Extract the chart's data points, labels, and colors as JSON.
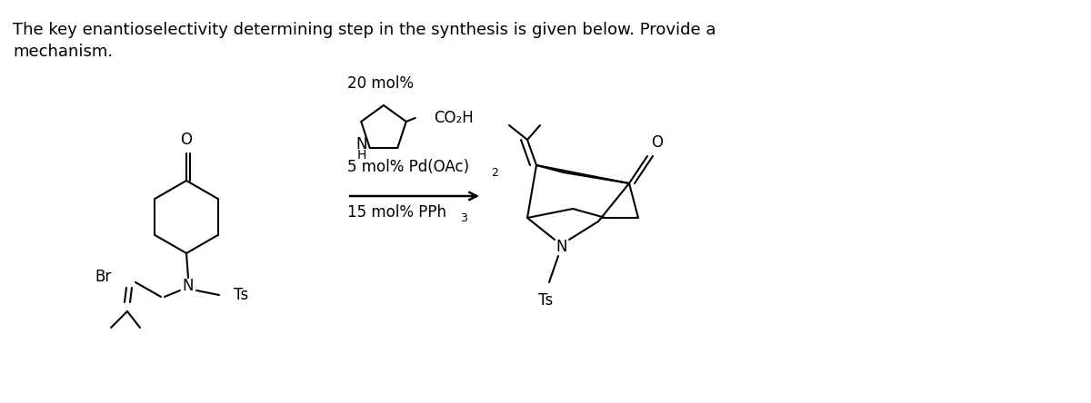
{
  "bg_color": "#ffffff",
  "text_color": "#000000",
  "line_color": "#000000",
  "line_width": 1.5,
  "title_line1": "The key enantioselectivity determining step in the synthesis is given below. Provide a",
  "title_line2": "mechanism.",
  "catalyst_20mol": "20 mol%",
  "catalyst_pd": "5 mol% Pd(OAc)",
  "catalyst_pd_sub": "2",
  "catalyst_pph": "15 mol% PPh",
  "catalyst_pph_sub": "3",
  "co2h": "CO₂H",
  "br_label": "Br",
  "n_label": "N",
  "h_label": "H",
  "ts_label": "Ts",
  "o_label": "O"
}
